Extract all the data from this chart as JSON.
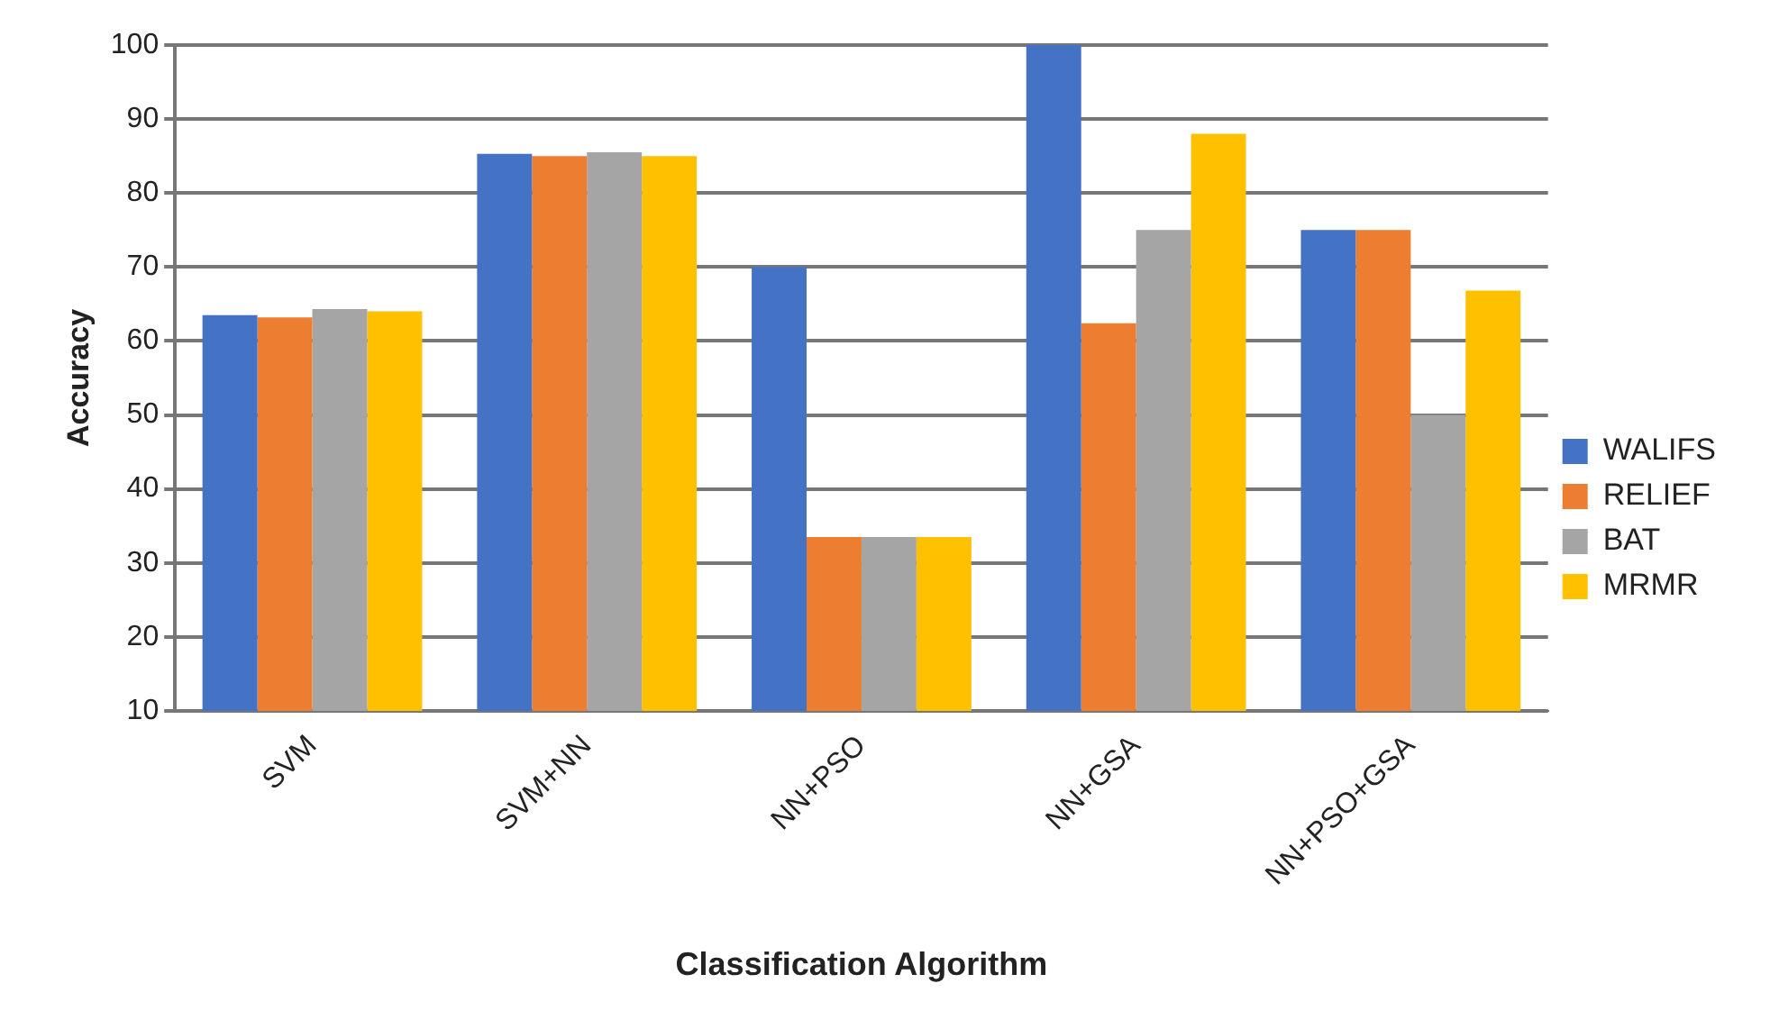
{
  "chart_data": {
    "type": "bar",
    "xlabel": "Classification Algorithm",
    "ylabel": "Accuracy",
    "categories": [
      "SVM",
      "SVM+NN",
      "NN+PSO",
      "NN+GSA",
      "NN+PSO+GSA"
    ],
    "series": [
      {
        "name": "WALIFS",
        "color": "#4472c4",
        "values": [
          63.5,
          85.3,
          70,
          100,
          75
        ]
      },
      {
        "name": "RELIEF",
        "color": "#ed7d31",
        "values": [
          63.2,
          85,
          33.5,
          62.4,
          75
        ]
      },
      {
        "name": "BAT",
        "color": "#a5a5a5",
        "values": [
          64.3,
          85.5,
          33.5,
          75,
          50
        ]
      },
      {
        "name": "MRMR",
        "color": "#ffc000",
        "values": [
          64,
          85,
          33.5,
          88,
          66.8
        ]
      }
    ],
    "ylim": [
      10,
      100
    ],
    "yticks": [
      10,
      20,
      30,
      40,
      50,
      60,
      70,
      80,
      90,
      100
    ],
    "grid": "y",
    "legend": "right"
  }
}
